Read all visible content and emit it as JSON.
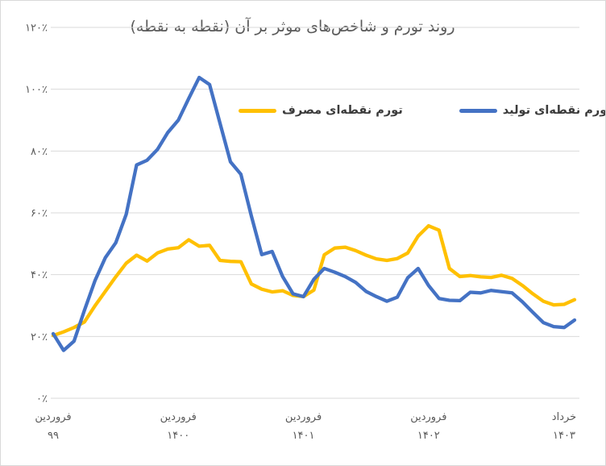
{
  "chart_data": {
    "type": "line",
    "title": "روند تورم و شاخص‌های موثر بر آن (نقطه به نقطه)",
    "ylim": [
      0,
      120
    ],
    "grid": "horizontal",
    "legend_position": "inside-top",
    "y_ticks": [
      {
        "value": 0,
        "label": "۰٪"
      },
      {
        "value": 20,
        "label": "۲۰٪"
      },
      {
        "value": 40,
        "label": "۴۰٪"
      },
      {
        "value": 60,
        "label": "۶۰٪"
      },
      {
        "value": 80,
        "label": "۸۰٪"
      },
      {
        "value": 100,
        "label": "۱۰۰٪"
      },
      {
        "value": 120,
        "label": "۱۲۰٪"
      }
    ],
    "x_ticks": [
      {
        "index": 0,
        "line1": "فروردین",
        "line2": "۹۹"
      },
      {
        "index": 12,
        "line1": "فروردین",
        "line2": "۱۴۰۰"
      },
      {
        "index": 24,
        "line1": "فروردین",
        "line2": "۱۴۰۱"
      },
      {
        "index": 36,
        "line1": "فروردین",
        "line2": "۱۴۰۲"
      },
      {
        "index": 50,
        "line1": "خرداد",
        "line2": "۱۴۰۳"
      }
    ],
    "series": [
      {
        "name": "تورم نقطه‌ای مصرف",
        "color": "#FFC000",
        "values": [
          20.3,
          21.5,
          22.9,
          24.7,
          29.9,
          34.6,
          39.3,
          43.7,
          46.3,
          44.4,
          47.0,
          48.3,
          48.7,
          51.3,
          49.2,
          49.5,
          44.6,
          44.3,
          44.2,
          37.0,
          35.3,
          34.4,
          34.8,
          33.3,
          32.9,
          35.0,
          46.4,
          48.6,
          48.9,
          47.8,
          46.3,
          45.1,
          44.6,
          45.2,
          47.0,
          52.5,
          55.8,
          54.4,
          42.0,
          39.4,
          39.7,
          39.3,
          39.1,
          39.8,
          38.8,
          36.5,
          33.8,
          31.4,
          30.2,
          30.4,
          31.9
        ]
      },
      {
        "name": "تورم نقطه‌ای تولید",
        "color": "#4472C4",
        "values": [
          20.9,
          15.5,
          18.5,
          28.5,
          38.0,
          45.5,
          50.3,
          59.5,
          75.5,
          77.0,
          80.5,
          86.0,
          90.0,
          97.0,
          103.8,
          101.5,
          89.0,
          76.5,
          72.5,
          59.0,
          46.5,
          47.5,
          39.4,
          33.8,
          32.9,
          38.5,
          42.0,
          40.8,
          39.4,
          37.5,
          34.6,
          32.9,
          31.4,
          32.7,
          39.0,
          42.0,
          36.5,
          32.3,
          31.7,
          31.6,
          34.3,
          34.1,
          34.9,
          34.5,
          34.1,
          31.2,
          27.8,
          24.5,
          23.2,
          22.9,
          25.3
        ]
      }
    ]
  }
}
